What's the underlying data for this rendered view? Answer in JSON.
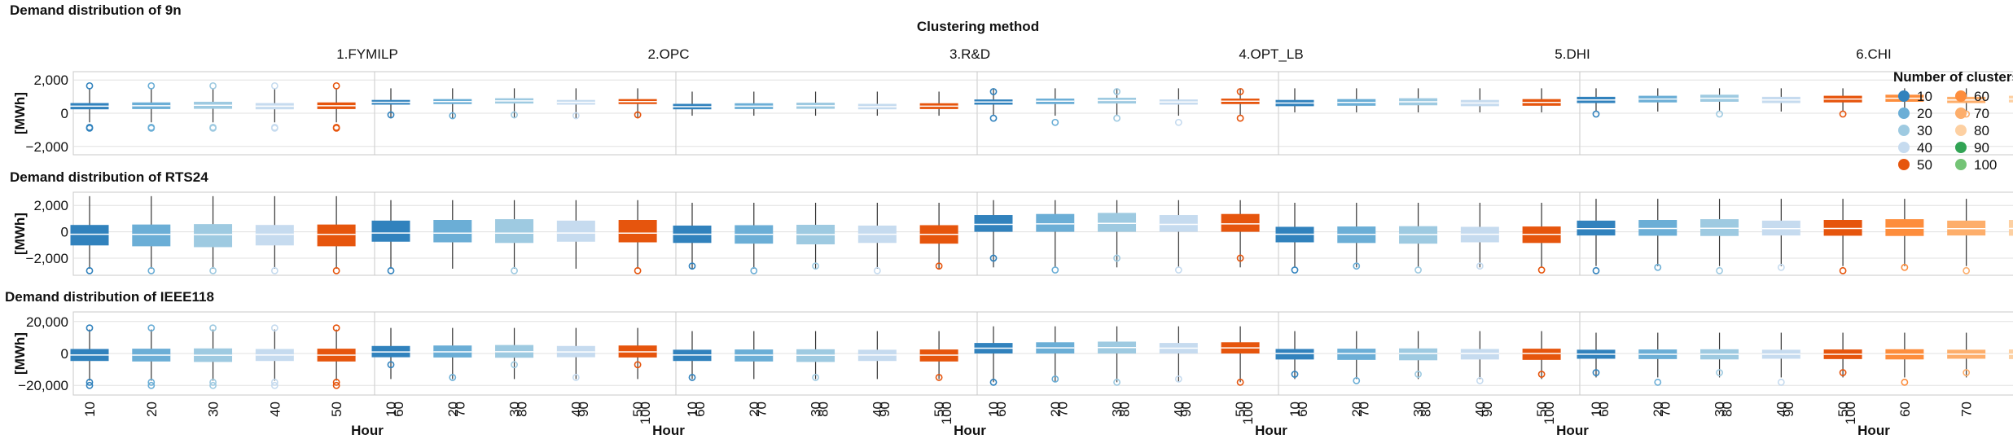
{
  "chart_data": {
    "type": "boxplot",
    "column_title": "Clustering method",
    "methods": [
      "1.FYMILP",
      "2.OPC",
      "3.R&D",
      "4.OPT_LB",
      "5.DHI",
      "6.CHI"
    ],
    "x_categories": [
      "10",
      "20",
      "30",
      "40",
      "50",
      "60",
      "70",
      "80",
      "90",
      "100"
    ],
    "xlabel": "Hour",
    "ylabel": "[MWh]",
    "legend": {
      "title": "Number of clusters",
      "entries": [
        "10",
        "20",
        "30",
        "40",
        "50",
        "60",
        "70",
        "80",
        "90",
        "100"
      ],
      "colors": [
        "#3182bd",
        "#6baed6",
        "#9ecae1",
        "#c6dbef",
        "#e6550d",
        "#fd8d3c",
        "#fdae6b",
        "#fdd0a2",
        "#31a354",
        "#74c476"
      ]
    },
    "rows": [
      {
        "title": "Demand distribution of 9n",
        "ylim": [
          -2500,
          2500
        ],
        "yticks": [
          -2000,
          0,
          2000
        ],
        "ytick_labels": [
          "−2,000",
          "0",
          "2,000"
        ],
        "panels": [
          {
            "q1": 250,
            "med": 450,
            "q3": 650,
            "lo": -550,
            "hi": 1500,
            "out": [
              -850,
              -900,
              1650
            ]
          },
          {
            "q1": 550,
            "med": 700,
            "q3": 850,
            "lo": -300,
            "hi": 1500,
            "out": [
              -100,
              -150
            ]
          },
          {
            "q1": 250,
            "med": 420,
            "q3": 600,
            "lo": -150,
            "hi": 1300,
            "out": []
          },
          {
            "q1": 550,
            "med": 720,
            "q3": 880,
            "lo": -150,
            "hi": 1500,
            "out": [
              -300,
              -550,
              1300
            ]
          },
          {
            "q1": 450,
            "med": 650,
            "q3": 850,
            "lo": 50,
            "hi": 1500,
            "out": []
          },
          {
            "q1": 650,
            "med": 850,
            "q3": 1050,
            "lo": 100,
            "hi": 1500,
            "out": [
              -50
            ]
          }
        ]
      },
      {
        "title": "Demand distribution of RTS24",
        "ylim": [
          -3300,
          3000
        ],
        "yticks": [
          -2000,
          0,
          2000
        ],
        "ytick_labels": [
          "−2,000",
          "0",
          "2,000"
        ],
        "panels": [
          {
            "q1": -1100,
            "med": -200,
            "q3": 550,
            "lo": -2800,
            "hi": 2700,
            "out": [
              -2950
            ]
          },
          {
            "q1": -800,
            "med": -100,
            "q3": 900,
            "lo": -2800,
            "hi": 2400,
            "out": [
              -2950
            ]
          },
          {
            "q1": -900,
            "med": -200,
            "q3": 500,
            "lo": -2800,
            "hi": 2200,
            "out": [
              -2600,
              -2950
            ]
          },
          {
            "q1": 0,
            "med": 600,
            "q3": 1350,
            "lo": -2700,
            "hi": 2400,
            "out": [
              -2000,
              -2900
            ]
          },
          {
            "q1": -850,
            "med": -200,
            "q3": 400,
            "lo": -2700,
            "hi": 2200,
            "out": [
              -2900,
              -2600
            ]
          },
          {
            "q1": -300,
            "med": 250,
            "q3": 900,
            "lo": -2600,
            "hi": 2500,
            "out": [
              -2950,
              -2700
            ]
          }
        ]
      },
      {
        "title": "Demand distribution of IEEE118",
        "ylim": [
          -26000,
          26000
        ],
        "yticks": [
          -20000,
          0,
          20000
        ],
        "ytick_labels": [
          "−20,000",
          "0",
          "20,000"
        ],
        "panels": [
          {
            "q1": -5000,
            "med": -1000,
            "q3": 3000,
            "lo": -17000,
            "hi": 15000,
            "out": [
              -18000,
              -20000,
              16000
            ]
          },
          {
            "q1": -2500,
            "med": 1000,
            "q3": 5000,
            "lo": -16000,
            "hi": 16000,
            "out": [
              -7000,
              -15000
            ]
          },
          {
            "q1": -5000,
            "med": -1000,
            "q3": 2500,
            "lo": -16000,
            "hi": 14000,
            "out": [
              -15000
            ]
          },
          {
            "q1": 0,
            "med": 3500,
            "q3": 7000,
            "lo": -18000,
            "hi": 17000,
            "out": [
              -18000,
              -16000
            ]
          },
          {
            "q1": -4000,
            "med": 0,
            "q3": 3000,
            "lo": -16000,
            "hi": 14000,
            "out": [
              -13000,
              -17000
            ]
          },
          {
            "q1": -3500,
            "med": -500,
            "q3": 2500,
            "lo": -15000,
            "hi": 13000,
            "out": [
              -12000,
              -18000
            ]
          }
        ]
      }
    ]
  }
}
